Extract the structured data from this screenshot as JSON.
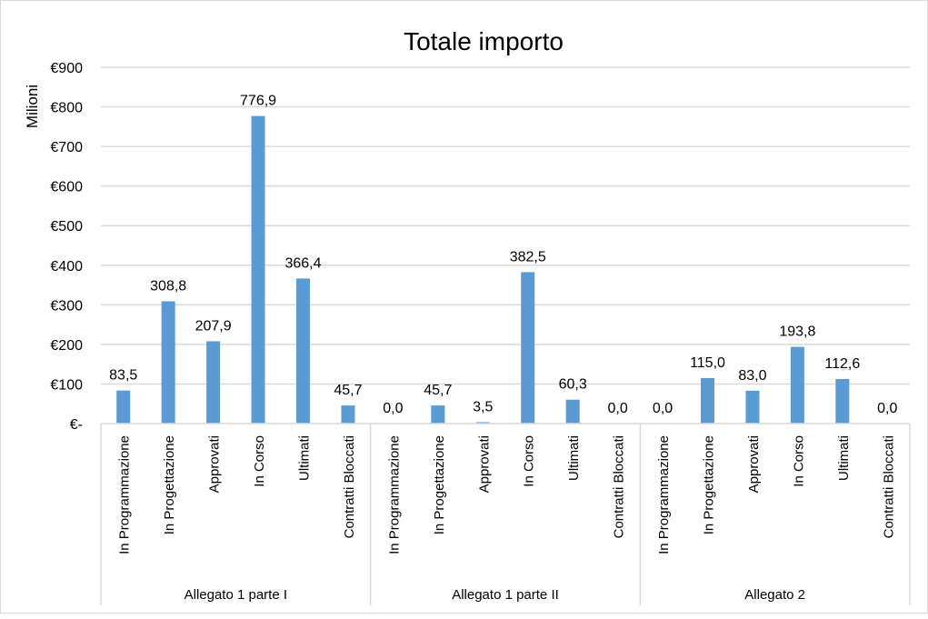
{
  "chart_data": {
    "type": "bar",
    "title": "Totale importo",
    "ylabel": "Milioni",
    "xlabel": "",
    "ylim": [
      0,
      900
    ],
    "yticks": [
      0,
      100,
      200,
      300,
      400,
      500,
      600,
      700,
      800,
      900
    ],
    "ytick_labels": [
      "€-",
      "€100",
      "€200",
      "€300",
      "€400",
      "€500",
      "€600",
      "€700",
      "€800",
      "€900"
    ],
    "grid": true,
    "bar_color": "#5B9BD5",
    "groups": [
      {
        "name": "Allegato 1 parte I",
        "categories": [
          "In Programmazione",
          "In Progettazione",
          "Approvati",
          "In Corso",
          "Ultimati",
          "Contratti Bloccati"
        ],
        "values": [
          83.5,
          308.8,
          207.9,
          776.9,
          366.4,
          45.7
        ],
        "labels": [
          "83,5",
          "308,8",
          "207,9",
          "776,9",
          "366,4",
          "45,7"
        ]
      },
      {
        "name": "Allegato 1 parte II",
        "categories": [
          "In Programmazione",
          "In Progettazione",
          "Approvati",
          "In Corso",
          "Ultimati",
          "Contratti Bloccati"
        ],
        "values": [
          0.0,
          45.7,
          3.5,
          382.5,
          60.3,
          0.0
        ],
        "labels": [
          "0,0",
          "45,7",
          "3,5",
          "382,5",
          "60,3",
          "0,0"
        ]
      },
      {
        "name": "Allegato 2",
        "categories": [
          "In Programmazione",
          "In Progettazione",
          "Approvati",
          "In Corso",
          "Ultimati",
          "Contratti Bloccati"
        ],
        "values": [
          0.0,
          115.0,
          83.0,
          193.8,
          112.6,
          0.0
        ],
        "labels": [
          "0,0",
          "115,0",
          "83,0",
          "193,8",
          "112,6",
          "0,0"
        ]
      }
    ]
  }
}
